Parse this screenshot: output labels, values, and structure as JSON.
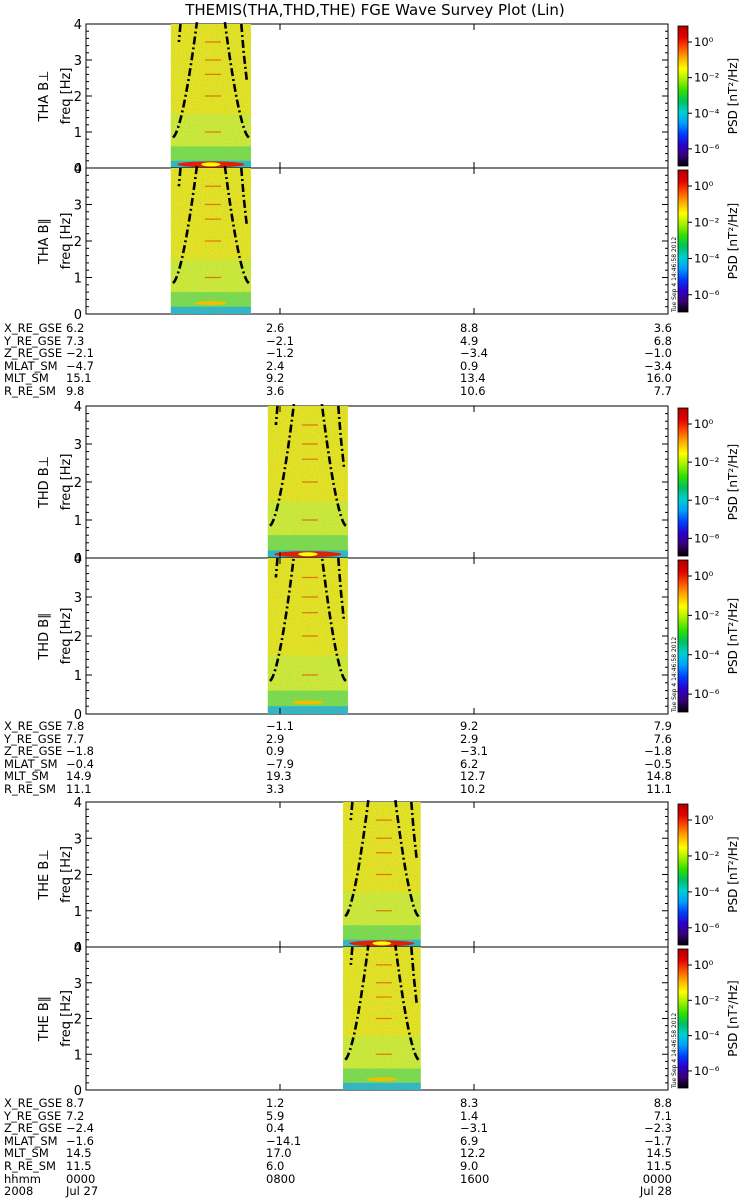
{
  "title": "THEMIS(THA,THD,THE) FGE Wave Survey Plot (Lin)",
  "colorbar": {
    "label": "PSD [nT²/Hz]",
    "ticks": [
      "10⁰",
      "10⁻²",
      "10⁻⁴",
      "10⁻⁶"
    ],
    "timestamp": "Tue Sep  4 14:46:58 2012",
    "colors": [
      "#000000",
      "#3a007a",
      "#2a00d0",
      "#0040ff",
      "#00a0ff",
      "#00d0d0",
      "#00c060",
      "#30e000",
      "#a0f000",
      "#ffff00",
      "#ffb000",
      "#ff5000",
      "#e00000",
      "#b00000"
    ]
  },
  "panels_meta": {
    "freq_label": "freq [Hz]",
    "freq_ticks": [
      "0",
      "1",
      "2",
      "3",
      "4"
    ]
  },
  "chart_data": {
    "type": "heatmap",
    "x_range": [
      "2008 Jul 27 0000",
      "2008 Jul 28 0000"
    ],
    "y_range": [
      0,
      4
    ],
    "z_scale": "log",
    "z_range": [
      1e-07,
      10
    ],
    "panels": [
      {
        "probe": "THA",
        "component": "B⊥",
        "ylabel": "THA B⊥",
        "active_hours": [
          3.5,
          6.8
        ]
      },
      {
        "probe": "THA",
        "component": "B∥",
        "ylabel": "THA B∥",
        "active_hours": [
          3.5,
          6.8
        ]
      },
      {
        "probe": "THD",
        "component": "B⊥",
        "ylabel": "THD B⊥",
        "active_hours": [
          7.5,
          10.8
        ]
      },
      {
        "probe": "THD",
        "component": "B∥",
        "ylabel": "THD B∥",
        "active_hours": [
          7.5,
          10.8
        ]
      },
      {
        "probe": "THE",
        "component": "B⊥",
        "ylabel": "THE B⊥",
        "active_hours": [
          10.6,
          13.8
        ]
      },
      {
        "probe": "THE",
        "component": "B∥",
        "ylabel": "THE B∥",
        "active_hours": [
          10.6,
          13.8
        ]
      }
    ],
    "ephemeris": [
      {
        "rows": [
          {
            "label": "X_RE_GSE",
            "values": [
              "6.2",
              "2.6",
              "8.8",
              "3.6"
            ]
          },
          {
            "label": "Y_RE_GSE",
            "values": [
              "7.3",
              "−2.1",
              "4.9",
              "6.8"
            ]
          },
          {
            "label": "Z_RE_GSE",
            "values": [
              "−2.1",
              "−1.2",
              "−3.4",
              "−1.0"
            ]
          },
          {
            "label": "MLAT_SM",
            "values": [
              "−4.7",
              "2.4",
              "0.9",
              "−3.4"
            ]
          },
          {
            "label": "MLT_SM",
            "values": [
              "15.1",
              "9.2",
              "13.4",
              "16.0"
            ]
          },
          {
            "label": "R_RE_SM",
            "values": [
              "9.8",
              "3.6",
              "10.6",
              "7.7"
            ]
          }
        ]
      },
      {
        "rows": [
          {
            "label": "X_RE_GSE",
            "values": [
              "7.8",
              "−1.1",
              "9.2",
              "7.9"
            ]
          },
          {
            "label": "Y_RE_GSE",
            "values": [
              "7.7",
              "2.9",
              "2.9",
              "7.6"
            ]
          },
          {
            "label": "Z_RE_GSE",
            "values": [
              "−1.8",
              "0.9",
              "−3.1",
              "−1.8"
            ]
          },
          {
            "label": "MLAT_SM",
            "values": [
              "−0.4",
              "−7.9",
              "6.2",
              "−0.5"
            ]
          },
          {
            "label": "MLT_SM",
            "values": [
              "14.9",
              "19.3",
              "12.7",
              "14.8"
            ]
          },
          {
            "label": "R_RE_SM",
            "values": [
              "11.1",
              "3.3",
              "10.2",
              "11.1"
            ]
          }
        ]
      },
      {
        "rows": [
          {
            "label": "X_RE_GSE",
            "values": [
              "8.7",
              "1.2",
              "8.3",
              "8.8"
            ]
          },
          {
            "label": "Y_RE_GSE",
            "values": [
              "7.2",
              "5.9",
              "1.4",
              "7.1"
            ]
          },
          {
            "label": "Z_RE_GSE",
            "values": [
              "−2.4",
              "0.4",
              "−3.1",
              "−2.3"
            ]
          },
          {
            "label": "MLAT_SM",
            "values": [
              "−1.6",
              "−14.1",
              "6.9",
              "−1.7"
            ]
          },
          {
            "label": "MLT_SM",
            "values": [
              "14.5",
              "17.0",
              "12.2",
              "14.5"
            ]
          },
          {
            "label": "R_RE_SM",
            "values": [
              "11.5",
              "6.0",
              "9.0",
              "11.5"
            ]
          },
          {
            "label": "hhmm",
            "values": [
              "0000",
              "0800",
              "1600",
              "0000"
            ]
          },
          {
            "label": "2008",
            "values": [
              "Jul 27",
              "",
              "",
              "Jul 28"
            ]
          }
        ]
      }
    ]
  }
}
